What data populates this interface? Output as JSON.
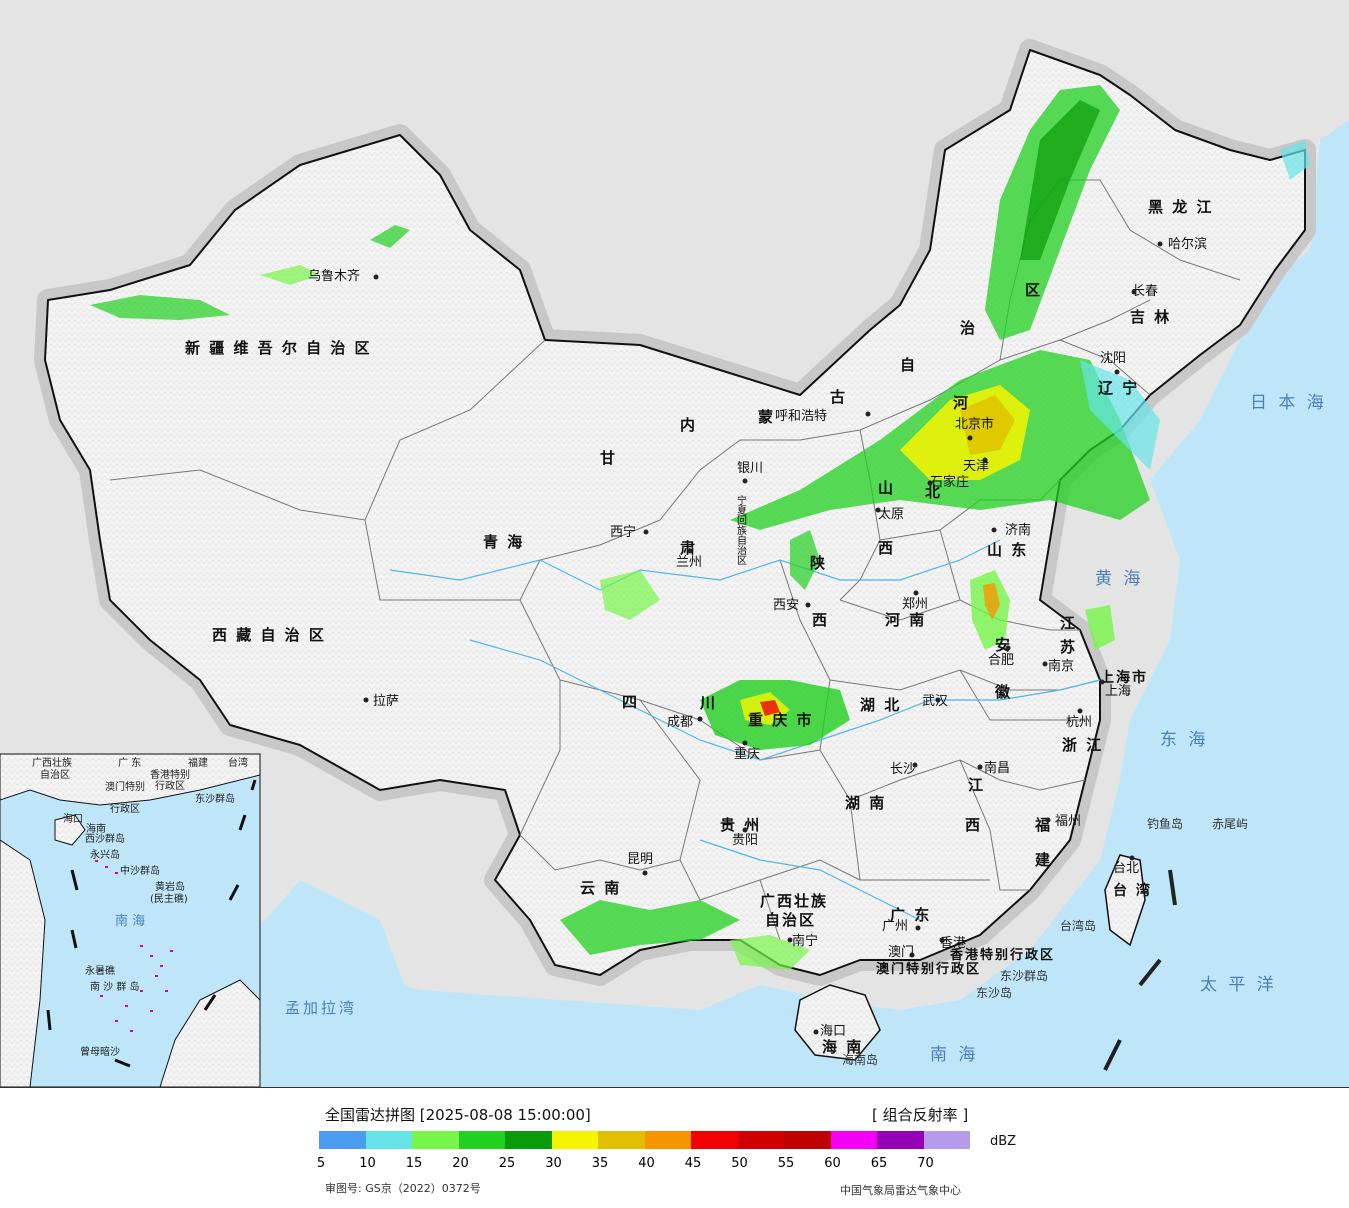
{
  "title": "全国雷达拼图 [2025-08-08 15:00:00]",
  "product": "[ 组合反射率 ]",
  "unit": "dBZ",
  "approval": "审图号: GS京（2022）0372号",
  "source": "中国气象局雷达气象中心",
  "legend": {
    "colors": [
      "#4a9df0",
      "#66e4e8",
      "#78f54a",
      "#22d020",
      "#0a9a0a",
      "#f5f500",
      "#e0c000",
      "#f59600",
      "#f50000",
      "#d00000",
      "#c00000",
      "#f500f5",
      "#9600b4",
      "#b49bec"
    ],
    "ticks": [
      "5",
      "10",
      "15",
      "20",
      "25",
      "30",
      "35",
      "40",
      "45",
      "50",
      "55",
      "60",
      "65",
      "70"
    ]
  },
  "regions": [
    {
      "name": "新 疆 维 吾 尔 自 治 区"
    },
    {
      "name": "西 藏 自 治 区"
    },
    {
      "name": "青 海"
    },
    {
      "name": "甘"
    },
    {
      "name": "肃"
    },
    {
      "name": "内"
    },
    {
      "name": "蒙"
    },
    {
      "name": "古"
    },
    {
      "name": "自"
    },
    {
      "name": "治"
    },
    {
      "name": "区"
    },
    {
      "name": "黑 龙 江"
    },
    {
      "name": "吉 林"
    },
    {
      "name": "辽 宁"
    },
    {
      "name": "河"
    },
    {
      "name": "北"
    },
    {
      "name": "山"
    },
    {
      "name": "西"
    },
    {
      "name": "山 东"
    },
    {
      "name": "陕"
    },
    {
      "name": "西"
    },
    {
      "name": "河 南"
    },
    {
      "name": "江"
    },
    {
      "name": "苏"
    },
    {
      "name": "安"
    },
    {
      "name": "徽"
    },
    {
      "name": "上海市"
    },
    {
      "name": "浙 江"
    },
    {
      "name": "四"
    },
    {
      "name": "川"
    },
    {
      "name": "重 庆 市"
    },
    {
      "name": "湖 北"
    },
    {
      "name": "湖 南"
    },
    {
      "name": "江"
    },
    {
      "name": "西"
    },
    {
      "name": "福"
    },
    {
      "name": "建"
    },
    {
      "name": "贵 州"
    },
    {
      "name": "云 南"
    },
    {
      "name": "广西壮族"
    },
    {
      "name": "自治区"
    },
    {
      "name": "广 东"
    },
    {
      "name": "海 南"
    },
    {
      "name": "台 湾"
    },
    {
      "name": "香港特别行政区"
    },
    {
      "name": "澳门特别行政区"
    },
    {
      "name": "宁夏回族自治区"
    }
  ],
  "cities": [
    {
      "name": "乌鲁木齐"
    },
    {
      "name": "拉萨"
    },
    {
      "name": "西宁"
    },
    {
      "name": "兰州"
    },
    {
      "name": "银川"
    },
    {
      "name": "呼和浩特"
    },
    {
      "name": "北京市"
    },
    {
      "name": "天津"
    },
    {
      "name": "石家庄"
    },
    {
      "name": "太原"
    },
    {
      "name": "济南"
    },
    {
      "name": "郑州"
    },
    {
      "name": "西安"
    },
    {
      "name": "合肥"
    },
    {
      "name": "南京"
    },
    {
      "name": "上海"
    },
    {
      "name": "杭州"
    },
    {
      "name": "武汉"
    },
    {
      "name": "成都"
    },
    {
      "name": "重庆"
    },
    {
      "name": "长沙"
    },
    {
      "name": "南昌"
    },
    {
      "name": "福州"
    },
    {
      "name": "台北"
    },
    {
      "name": "贵阳"
    },
    {
      "name": "昆明"
    },
    {
      "name": "南宁"
    },
    {
      "name": "广州"
    },
    {
      "name": "香港"
    },
    {
      "name": "澳门"
    },
    {
      "name": "海口"
    },
    {
      "name": "哈尔滨"
    },
    {
      "name": "长春"
    },
    {
      "name": "沈阳"
    }
  ],
  "seas": [
    {
      "name": "日 本 海"
    },
    {
      "name": "黄 海"
    },
    {
      "name": "东 海"
    },
    {
      "name": "太 平 洋"
    },
    {
      "name": "南 海"
    },
    {
      "name": "孟加拉湾"
    }
  ],
  "islands": [
    {
      "name": "钓鱼岛"
    },
    {
      "name": "赤尾屿"
    },
    {
      "name": "台湾岛"
    },
    {
      "name": "东沙群岛"
    },
    {
      "name": "东沙岛"
    },
    {
      "name": "海南岛"
    }
  ],
  "inset": {
    "labels": [
      {
        "name": "广西壮族"
      },
      {
        "name": "自治区"
      },
      {
        "name": "广 东"
      },
      {
        "name": "福建"
      },
      {
        "name": "台湾"
      },
      {
        "name": "香港特别"
      },
      {
        "name": "行政区"
      },
      {
        "name": "澳门特别"
      },
      {
        "name": "行政区"
      },
      {
        "name": "东沙群岛"
      },
      {
        "name": "海口"
      },
      {
        "name": "海南"
      },
      {
        "name": "西沙群岛"
      },
      {
        "name": "永兴岛"
      },
      {
        "name": "中沙群岛"
      },
      {
        "name": "黄岩岛"
      },
      {
        "name": "(民主礁)"
      },
      {
        "name": "南 海"
      },
      {
        "name": "永暑礁"
      },
      {
        "name": "南 沙 群 岛"
      },
      {
        "name": "曾母暗沙"
      }
    ]
  }
}
